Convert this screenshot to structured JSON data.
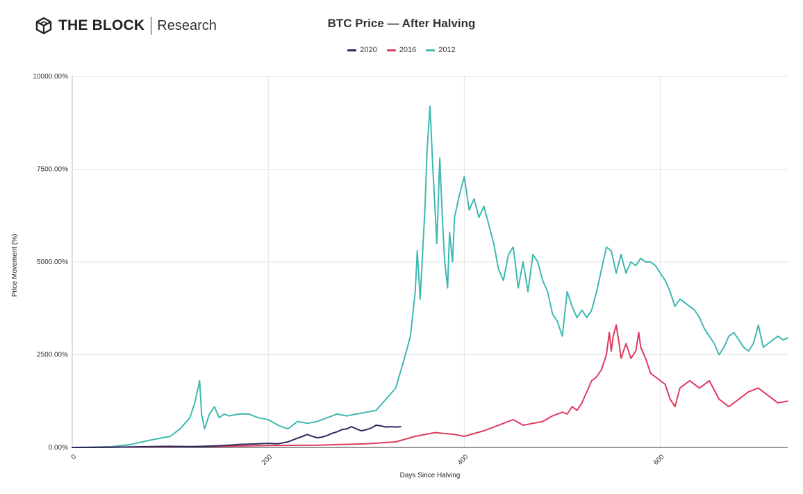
{
  "brand": {
    "name": "THE BLOCK",
    "sub": "Research"
  },
  "legend": [
    {
      "label": "2020",
      "color": "#2c2a5c"
    },
    {
      "label": "2016",
      "color": "#de3a5e"
    },
    {
      "label": "2012",
      "color": "#3fb8b0"
    }
  ],
  "chart_data": {
    "type": "line",
    "title": "BTC Price — After Halving",
    "xlabel": "Days Since Halving",
    "ylabel": "Price Movement (%)",
    "xlim": [
      0,
      730
    ],
    "ylim": [
      0,
      10000
    ],
    "xticks": [
      0,
      200,
      400,
      600
    ],
    "xtick_labels": [
      "0",
      "200",
      "400",
      "600"
    ],
    "yticks": [
      0,
      2500,
      5000,
      7500,
      10000
    ],
    "ytick_labels": [
      "0.00%",
      "2500.00%",
      "5000.00%",
      "7500.00%",
      "10000.00%"
    ],
    "grid": true,
    "legend_position": "top-center",
    "series": [
      {
        "name": "2020",
        "color": "#2c2a5c",
        "x": [
          0,
          20,
          40,
          60,
          80,
          100,
          120,
          140,
          160,
          170,
          180,
          190,
          200,
          210,
          220,
          230,
          235,
          240,
          245,
          250,
          255,
          260,
          265,
          270,
          275,
          280,
          285,
          290,
          295,
          300,
          305,
          310,
          315,
          320,
          325,
          330,
          335
        ],
        "y": [
          0,
          0,
          5,
          15,
          25,
          30,
          20,
          35,
          60,
          80,
          90,
          100,
          110,
          100,
          150,
          250,
          300,
          350,
          300,
          260,
          280,
          320,
          380,
          420,
          480,
          500,
          560,
          500,
          450,
          480,
          520,
          600,
          580,
          550,
          560,
          550,
          560
        ]
      },
      {
        "name": "2016",
        "color": "#de3a5e",
        "x": [
          0,
          50,
          100,
          150,
          200,
          250,
          300,
          330,
          350,
          370,
          390,
          400,
          420,
          440,
          450,
          460,
          470,
          480,
          490,
          500,
          505,
          510,
          515,
          520,
          525,
          530,
          535,
          540,
          545,
          548,
          550,
          552,
          555,
          558,
          560,
          565,
          570,
          575,
          578,
          580,
          585,
          590,
          595,
          600,
          605,
          610,
          615,
          620,
          625,
          630,
          640,
          650,
          660,
          670,
          680,
          690,
          700,
          710,
          720,
          730
        ],
        "y": [
          0,
          10,
          20,
          30,
          50,
          60,
          100,
          150,
          300,
          400,
          350,
          300,
          450,
          650,
          750,
          600,
          650,
          700,
          850,
          950,
          900,
          1100,
          1000,
          1200,
          1500,
          1800,
          1900,
          2100,
          2500,
          3100,
          2600,
          3000,
          3300,
          2800,
          2400,
          2800,
          2400,
          2600,
          3100,
          2700,
          2400,
          2000,
          1900,
          1800,
          1700,
          1300,
          1100,
          1600,
          1700,
          1800,
          1600,
          1800,
          1300,
          1100,
          1300,
          1500,
          1600,
          1400,
          1200,
          1250
        ]
      },
      {
        "name": "2012",
        "color": "#3fb8b0",
        "x": [
          0,
          20,
          40,
          60,
          80,
          100,
          110,
          120,
          125,
          130,
          132,
          135,
          140,
          145,
          150,
          155,
          160,
          170,
          180,
          190,
          200,
          210,
          220,
          230,
          240,
          250,
          260,
          270,
          280,
          290,
          300,
          310,
          320,
          330,
          340,
          345,
          350,
          352,
          355,
          358,
          360,
          362,
          365,
          368,
          370,
          372,
          375,
          378,
          380,
          383,
          385,
          388,
          390,
          395,
          400,
          405,
          410,
          415,
          420,
          425,
          430,
          435,
          440,
          445,
          450,
          455,
          460,
          465,
          470,
          475,
          480,
          485,
          490,
          495,
          500,
          505,
          510,
          515,
          520,
          525,
          530,
          535,
          540,
          545,
          550,
          555,
          560,
          565,
          570,
          575,
          580,
          585,
          590,
          595,
          600,
          605,
          610,
          615,
          620,
          625,
          630,
          635,
          640,
          645,
          650,
          655,
          660,
          665,
          670,
          675,
          680,
          685,
          690,
          695,
          700,
          705,
          710,
          715,
          720,
          725,
          730
        ],
        "y": [
          0,
          10,
          20,
          80,
          200,
          300,
          500,
          800,
          1200,
          1800,
          900,
          500,
          900,
          1100,
          800,
          900,
          850,
          900,
          900,
          800,
          750,
          600,
          500,
          700,
          650,
          700,
          800,
          900,
          850,
          900,
          950,
          1000,
          1300,
          1600,
          2500,
          3000,
          4200,
          5300,
          4000,
          5500,
          6500,
          8000,
          9200,
          7500,
          6500,
          5500,
          7800,
          6000,
          5000,
          4300,
          5800,
          5000,
          6200,
          6800,
          7300,
          6400,
          6700,
          6200,
          6500,
          6000,
          5500,
          4800,
          4500,
          5200,
          5400,
          4300,
          5000,
          4200,
          5200,
          5000,
          4500,
          4200,
          3600,
          3400,
          3000,
          4200,
          3800,
          3500,
          3700,
          3500,
          3700,
          4200,
          4800,
          5400,
          5300,
          4700,
          5200,
          4700,
          5000,
          4900,
          5100,
          5000,
          5000,
          4900,
          4700,
          4500,
          4200,
          3800,
          4000,
          3900,
          3800,
          3700,
          3500,
          3200,
          3000,
          2800,
          2500,
          2700,
          3000,
          3100,
          2900,
          2700,
          2600,
          2800,
          3300,
          2700,
          2800,
          2900,
          3000,
          2900,
          2950
        ]
      }
    ]
  }
}
